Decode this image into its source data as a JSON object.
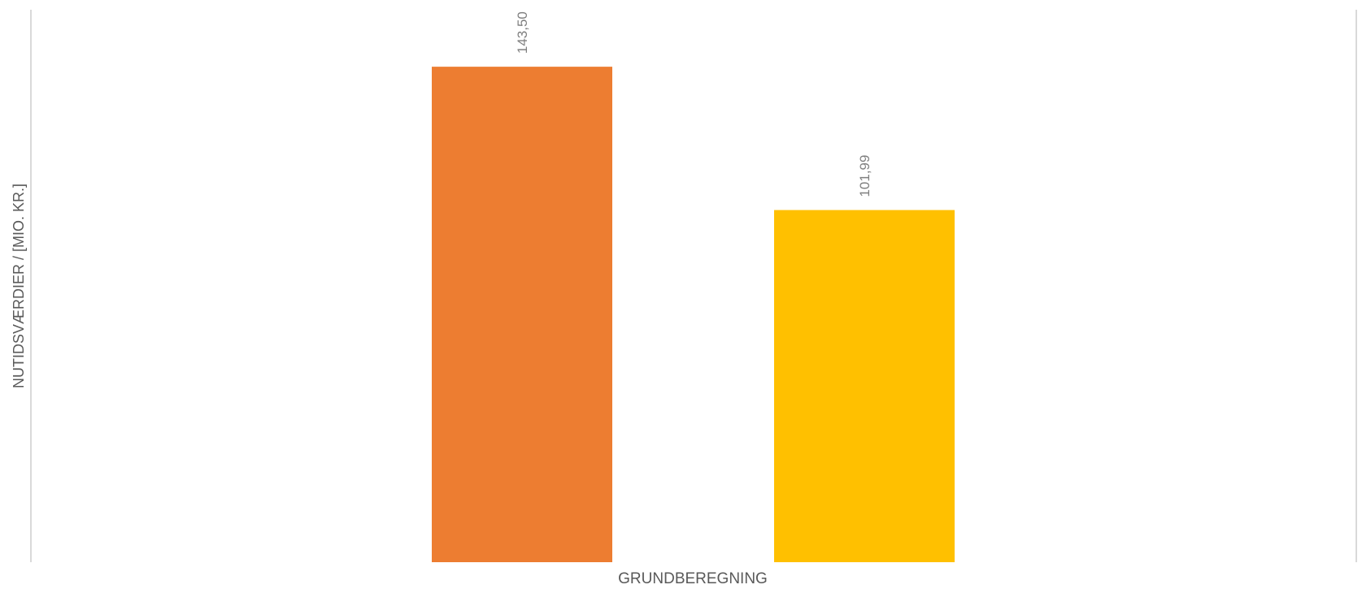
{
  "chart_data": {
    "type": "bar",
    "categories": [
      "GRUNDBEREGNING"
    ],
    "series": [
      {
        "values": [
          143.5
        ],
        "color": "#ED7D31"
      },
      {
        "values": [
          101.99
        ],
        "color": "#FFC000"
      }
    ],
    "data_labels": [
      "143,50",
      "101,99"
    ],
    "xlabel": "",
    "ylabel": "NUTIDSVÆRDIER / [MIO. KR.]",
    "ylim": [
      0,
      160
    ],
    "grid": false,
    "legend": "none"
  },
  "colors": {
    "axis_line": "#D9D9D9",
    "text": "#595959",
    "data_label": "#7F7F7F"
  }
}
